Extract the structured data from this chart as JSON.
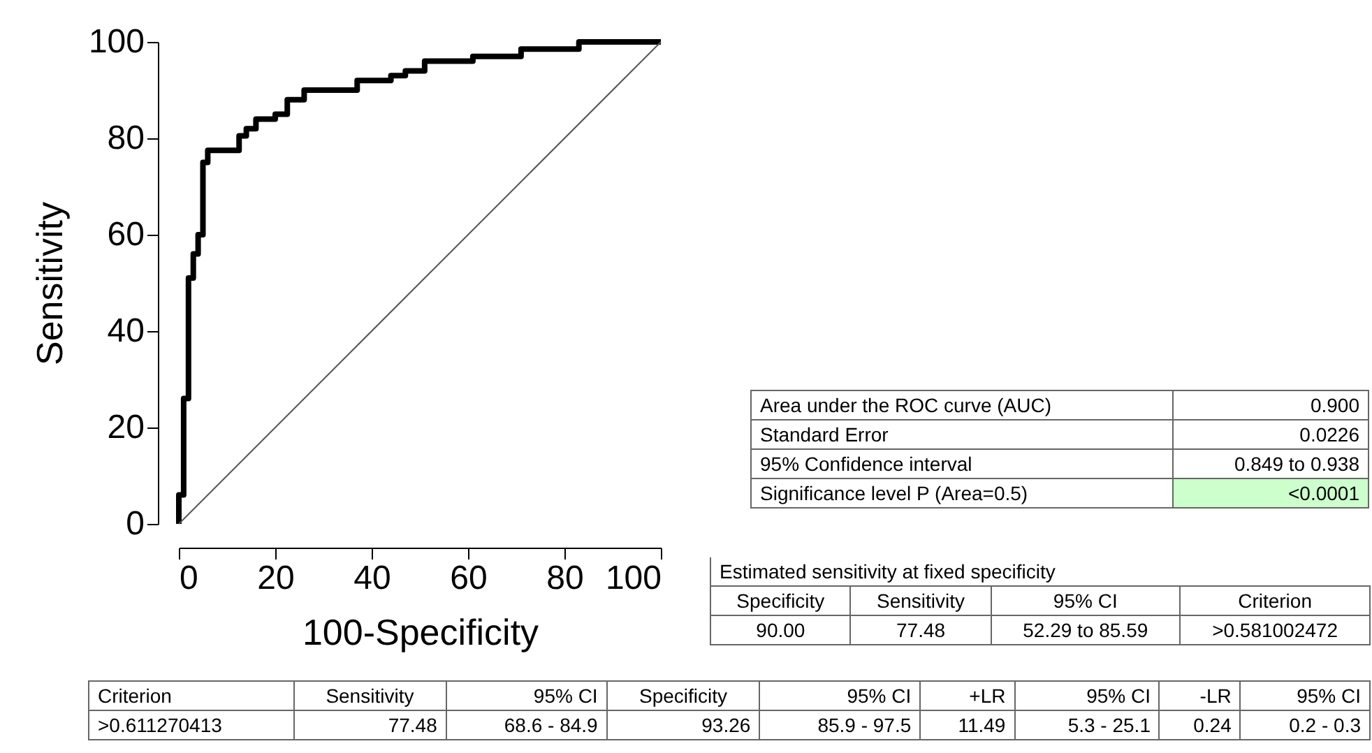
{
  "chart_data": {
    "type": "step",
    "xlabel": "100-Specificity",
    "ylabel": "Sensitivity",
    "xlim": [
      0,
      100
    ],
    "ylim": [
      0,
      100
    ],
    "xticks": [
      0,
      20,
      40,
      60,
      80,
      100
    ],
    "yticks": [
      0,
      20,
      40,
      60,
      80,
      100
    ],
    "grid": false,
    "series": [
      {
        "color": "#000000",
        "x": [
          0,
          0,
          1,
          2,
          3,
          4,
          5,
          6,
          12.5,
          14,
          16,
          20,
          22.5,
          26,
          37,
          44,
          47,
          51,
          61,
          71,
          83,
          100
        ],
        "values": [
          0,
          6,
          26,
          51,
          56,
          60,
          75,
          77.5,
          80.5,
          82,
          84,
          85,
          88,
          90,
          92,
          93,
          94,
          96,
          97,
          98.5,
          100,
          100
        ]
      },
      {
        "type": "line",
        "color": "#555555",
        "x": [
          0,
          100
        ],
        "values": [
          0,
          100
        ]
      }
    ],
    "annotations": [
      "Area under the ROC curve (AUC)",
      "0.900",
      "Standard Error",
      "0.0226",
      "95% Confidence interval",
      "0.849 to 0.938",
      "Significance level P (Area=0.5)",
      "<0.0001",
      "Estimated sensitivity at fixed specificity",
      "Specificity",
      "Sensitivity",
      "95% CI",
      "Criterion",
      "90.00",
      "77.48",
      "52.29 to 85.59",
      ">0.581002472",
      "Criterion",
      "Sensitivity",
      "95% CI",
      "Specificity",
      "95% CI",
      "+LR",
      "95% CI",
      "-LR",
      "95% CI",
      ">0.611270413",
      "77.48",
      "68.6 - 84.9",
      "93.26",
      "85.9 - 97.5",
      "11.49",
      "5.3 - 25.1",
      "0.24",
      "0.2 - 0.3"
    ]
  }
}
